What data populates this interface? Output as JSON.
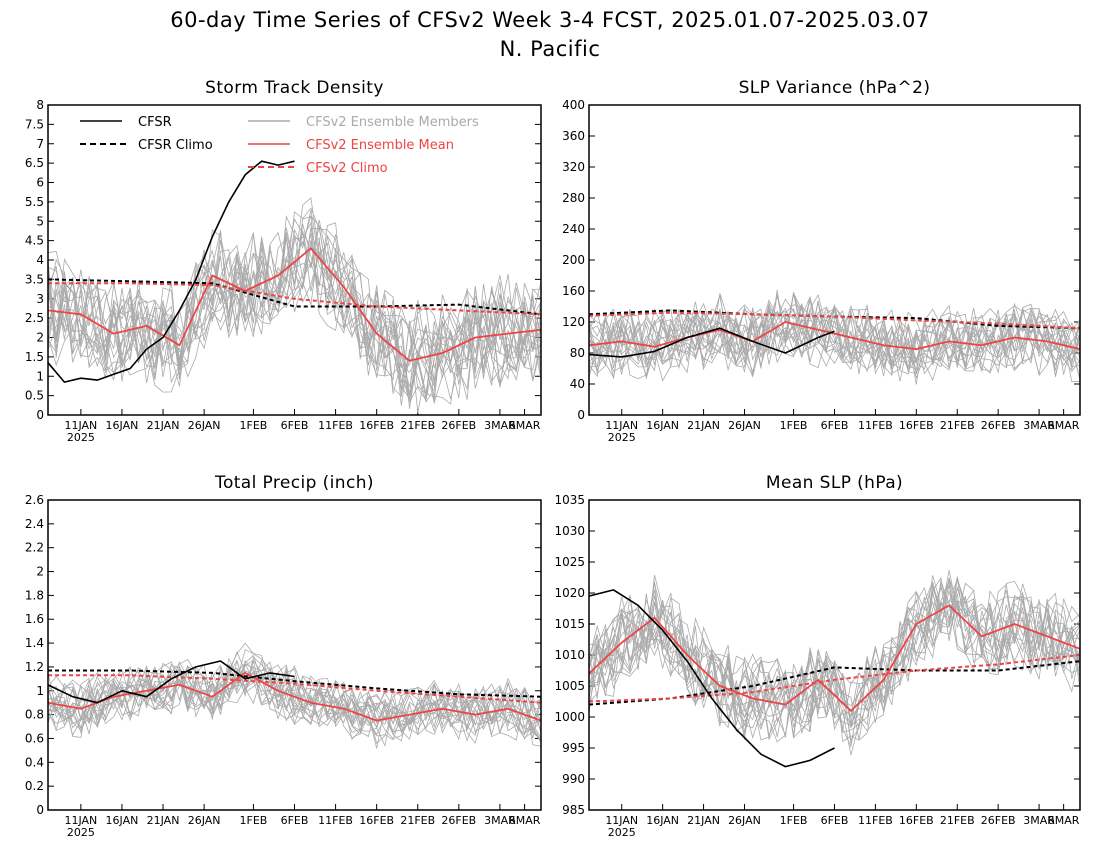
{
  "figure": {
    "title": "60-day Time Series of CFSv2 Week 3-4 FCST, 2025.01.07-2025.03.07",
    "subtitle": "N. Pacific"
  },
  "colors": {
    "cfsr": "#000000",
    "members": "#aaaaaa",
    "ens_mean": "#ee4444",
    "frame": "#000000"
  },
  "legend": {
    "placement": "top-left of first panel",
    "entries": [
      {
        "label": "CFSR",
        "style": "solid",
        "color": "#000000"
      },
      {
        "label": "CFSR Climo",
        "style": "dashed",
        "color": "#000000"
      },
      {
        "label": "CFSv2 Ensemble Members",
        "style": "solid",
        "color": "#aaaaaa"
      },
      {
        "label": "CFSv2 Ensemble Mean",
        "style": "solid",
        "color": "#ee4444"
      },
      {
        "label": "CFSv2 Climo",
        "style": "dashed",
        "color": "#ee4444"
      }
    ]
  },
  "chart_data": [
    {
      "type": "line",
      "title": "Storm Track Density",
      "x_start": "2025-01-07",
      "ylim": [
        0,
        8
      ],
      "yticks": [
        "0",
        "0.5",
        "1",
        "1.5",
        "2",
        "2.5",
        "3",
        "3.5",
        "4",
        "4.5",
        "5",
        "5.5",
        "6",
        "6.5",
        "7",
        "7.5",
        "8"
      ],
      "xticks": [
        "11JAN",
        "16JAN",
        "21JAN",
        "26JAN",
        "1FEB",
        "6FEB",
        "11FEB",
        "16FEB",
        "21FEB",
        "26FEB",
        "3MAR",
        "6MAR"
      ],
      "xtick_year": "2025",
      "members": {
        "count": 20,
        "approx_center": 2.8,
        "approx_spread": 1.2
      },
      "series": [
        {
          "name": "CFSR",
          "x": [
            "2025-01-07",
            "2025-01-09",
            "2025-01-11",
            "2025-01-13",
            "2025-01-15",
            "2025-01-17",
            "2025-01-19",
            "2025-01-21",
            "2025-01-23",
            "2025-01-25",
            "2025-01-27",
            "2025-01-29",
            "2025-01-31",
            "2025-02-02",
            "2025-02-04",
            "2025-02-06"
          ],
          "values": [
            1.35,
            0.85,
            0.95,
            0.9,
            1.05,
            1.2,
            1.7,
            2.0,
            2.7,
            3.5,
            4.6,
            5.5,
            6.2,
            6.55,
            6.45,
            6.55
          ]
        },
        {
          "name": "CFSR Climo",
          "x": [
            "2025-01-07",
            "2025-01-17",
            "2025-01-27",
            "2025-02-06",
            "2025-02-16",
            "2025-02-26",
            "2025-03-08"
          ],
          "values": [
            3.5,
            3.45,
            3.4,
            2.8,
            2.8,
            2.85,
            2.6
          ]
        },
        {
          "name": "CFSv2 Ensemble Mean",
          "x": [
            "2025-01-07",
            "2025-01-11",
            "2025-01-15",
            "2025-01-19",
            "2025-01-23",
            "2025-01-27",
            "2025-01-31",
            "2025-02-04",
            "2025-02-08",
            "2025-02-12",
            "2025-02-16",
            "2025-02-20",
            "2025-02-24",
            "2025-02-28",
            "2025-03-04",
            "2025-03-08"
          ],
          "values": [
            2.7,
            2.6,
            2.1,
            2.3,
            1.8,
            3.6,
            3.2,
            3.6,
            4.3,
            3.3,
            2.1,
            1.4,
            1.6,
            2.0,
            2.1,
            2.2
          ]
        },
        {
          "name": "CFSv2 Climo",
          "x": [
            "2025-01-07",
            "2025-01-17",
            "2025-01-27",
            "2025-02-06",
            "2025-02-16",
            "2025-02-26",
            "2025-03-08"
          ],
          "values": [
            3.4,
            3.4,
            3.35,
            3.0,
            2.8,
            2.7,
            2.6
          ]
        }
      ]
    },
    {
      "type": "line",
      "title": "SLP Variance (hPa^2)",
      "x_start": "2025-01-07",
      "ylim": [
        0,
        400
      ],
      "yticks": [
        "0",
        "40",
        "80",
        "120",
        "160",
        "200",
        "240",
        "280",
        "320",
        "360",
        "400"
      ],
      "xticks": [
        "11JAN",
        "16JAN",
        "21JAN",
        "26JAN",
        "1FEB",
        "6FEB",
        "11FEB",
        "16FEB",
        "21FEB",
        "26FEB",
        "3MAR",
        "6MAR"
      ],
      "xtick_year": "2025",
      "members": {
        "count": 20,
        "approx_center": 100,
        "approx_spread": 40
      },
      "series": [
        {
          "name": "CFSR",
          "x": [
            "2025-01-07",
            "2025-01-11",
            "2025-01-15",
            "2025-01-19",
            "2025-01-23",
            "2025-01-27",
            "2025-01-31",
            "2025-02-04",
            "2025-02-06"
          ],
          "values": [
            78,
            75,
            82,
            100,
            112,
            95,
            80,
            100,
            108
          ]
        },
        {
          "name": "CFSR Climo",
          "x": [
            "2025-01-07",
            "2025-01-17",
            "2025-01-27",
            "2025-02-06",
            "2025-02-16",
            "2025-02-26",
            "2025-03-08"
          ],
          "values": [
            130,
            135,
            130,
            127,
            125,
            115,
            112
          ]
        },
        {
          "name": "CFSv2 Ensemble Mean",
          "x": [
            "2025-01-07",
            "2025-01-11",
            "2025-01-15",
            "2025-01-19",
            "2025-01-23",
            "2025-01-27",
            "2025-01-31",
            "2025-02-04",
            "2025-02-08",
            "2025-02-12",
            "2025-02-16",
            "2025-02-20",
            "2025-02-24",
            "2025-02-28",
            "2025-03-04",
            "2025-03-08"
          ],
          "values": [
            90,
            95,
            88,
            100,
            110,
            95,
            120,
            110,
            100,
            90,
            85,
            95,
            90,
            100,
            95,
            85
          ]
        },
        {
          "name": "CFSv2 Climo",
          "x": [
            "2025-01-07",
            "2025-01-17",
            "2025-01-27",
            "2025-02-06",
            "2025-02-16",
            "2025-02-26",
            "2025-03-08"
          ],
          "values": [
            128,
            132,
            130,
            127,
            122,
            118,
            112
          ]
        }
      ]
    },
    {
      "type": "line",
      "title": "Total Precip (inch)",
      "x_start": "2025-01-07",
      "ylim": [
        0,
        2.6
      ],
      "yticks": [
        "0",
        "0.2",
        "0.4",
        "0.6",
        "0.8",
        "1",
        "1.2",
        "1.4",
        "1.6",
        "1.8",
        "2",
        "2.2",
        "2.4",
        "2.6"
      ],
      "xticks": [
        "11JAN",
        "16JAN",
        "21JAN",
        "26JAN",
        "1FEB",
        "6FEB",
        "11FEB",
        "16FEB",
        "21FEB",
        "26FEB",
        "3MAR",
        "6MAR"
      ],
      "xtick_year": "2025",
      "members": {
        "count": 20,
        "approx_center": 0.95,
        "approx_spread": 0.2
      },
      "series": [
        {
          "name": "CFSR",
          "x": [
            "2025-01-07",
            "2025-01-10",
            "2025-01-13",
            "2025-01-16",
            "2025-01-19",
            "2025-01-22",
            "2025-01-25",
            "2025-01-28",
            "2025-01-31",
            "2025-02-03",
            "2025-02-06"
          ],
          "values": [
            1.05,
            0.95,
            0.9,
            1.0,
            0.95,
            1.1,
            1.2,
            1.25,
            1.1,
            1.15,
            1.12
          ]
        },
        {
          "name": "CFSR Climo",
          "x": [
            "2025-01-07",
            "2025-01-17",
            "2025-01-27",
            "2025-02-06",
            "2025-02-16",
            "2025-02-26",
            "2025-03-08"
          ],
          "values": [
            1.17,
            1.17,
            1.15,
            1.08,
            1.02,
            0.97,
            0.95
          ]
        },
        {
          "name": "CFSv2 Ensemble Mean",
          "x": [
            "2025-01-07",
            "2025-01-11",
            "2025-01-15",
            "2025-01-19",
            "2025-01-23",
            "2025-01-27",
            "2025-01-31",
            "2025-02-04",
            "2025-02-08",
            "2025-02-12",
            "2025-02-16",
            "2025-02-20",
            "2025-02-24",
            "2025-02-28",
            "2025-03-04",
            "2025-03-08"
          ],
          "values": [
            0.9,
            0.85,
            0.95,
            1.0,
            1.05,
            0.95,
            1.15,
            1.0,
            0.9,
            0.85,
            0.75,
            0.8,
            0.85,
            0.8,
            0.85,
            0.75
          ]
        },
        {
          "name": "CFSv2 Climo",
          "x": [
            "2025-01-07",
            "2025-01-17",
            "2025-01-27",
            "2025-02-06",
            "2025-02-16",
            "2025-02-26",
            "2025-03-08"
          ],
          "values": [
            1.13,
            1.13,
            1.1,
            1.06,
            1.0,
            0.95,
            0.9
          ]
        }
      ]
    },
    {
      "type": "line",
      "title": "Mean SLP (hPa)",
      "x_start": "2025-01-07",
      "ylim": [
        985,
        1035
      ],
      "yticks": [
        "985",
        "990",
        "995",
        "1000",
        "1005",
        "1010",
        "1015",
        "1020",
        "1025",
        "1030",
        "1035"
      ],
      "xticks": [
        "11JAN",
        "16JAN",
        "21JAN",
        "26JAN",
        "1FEB",
        "6FEB",
        "11FEB",
        "16FEB",
        "21FEB",
        "26FEB",
        "3MAR",
        "6MAR"
      ],
      "xtick_year": "2025",
      "members": {
        "count": 20,
        "approx_center": 1010,
        "approx_spread": 6
      },
      "series": [
        {
          "name": "CFSR",
          "x": [
            "2025-01-07",
            "2025-01-10",
            "2025-01-13",
            "2025-01-16",
            "2025-01-19",
            "2025-01-22",
            "2025-01-25",
            "2025-01-28",
            "2025-01-31",
            "2025-02-03",
            "2025-02-06"
          ],
          "values": [
            1019.5,
            1020.5,
            1018,
            1014,
            1009,
            1003,
            998,
            994,
            992,
            993,
            995
          ]
        },
        {
          "name": "CFSR Climo",
          "x": [
            "2025-01-07",
            "2025-01-17",
            "2025-01-27",
            "2025-02-06",
            "2025-02-16",
            "2025-02-26",
            "2025-03-08"
          ],
          "values": [
            1002,
            1003,
            1005,
            1008,
            1007.5,
            1007.5,
            1009
          ]
        },
        {
          "name": "CFSv2 Ensemble Mean",
          "x": [
            "2025-01-07",
            "2025-01-11",
            "2025-01-15",
            "2025-01-19",
            "2025-01-23",
            "2025-01-27",
            "2025-01-31",
            "2025-02-04",
            "2025-02-08",
            "2025-02-12",
            "2025-02-16",
            "2025-02-20",
            "2025-02-24",
            "2025-02-28",
            "2025-03-04",
            "2025-03-08"
          ],
          "values": [
            1007,
            1012,
            1016,
            1010,
            1005,
            1003,
            1002,
            1006,
            1001,
            1006,
            1015,
            1018,
            1013,
            1015,
            1013,
            1011
          ]
        },
        {
          "name": "CFSv2 Climo",
          "x": [
            "2025-01-07",
            "2025-01-17",
            "2025-01-27",
            "2025-02-06",
            "2025-02-16",
            "2025-02-26",
            "2025-03-08"
          ],
          "values": [
            1002.5,
            1003,
            1004,
            1006,
            1007.5,
            1008.5,
            1010
          ]
        }
      ]
    }
  ]
}
